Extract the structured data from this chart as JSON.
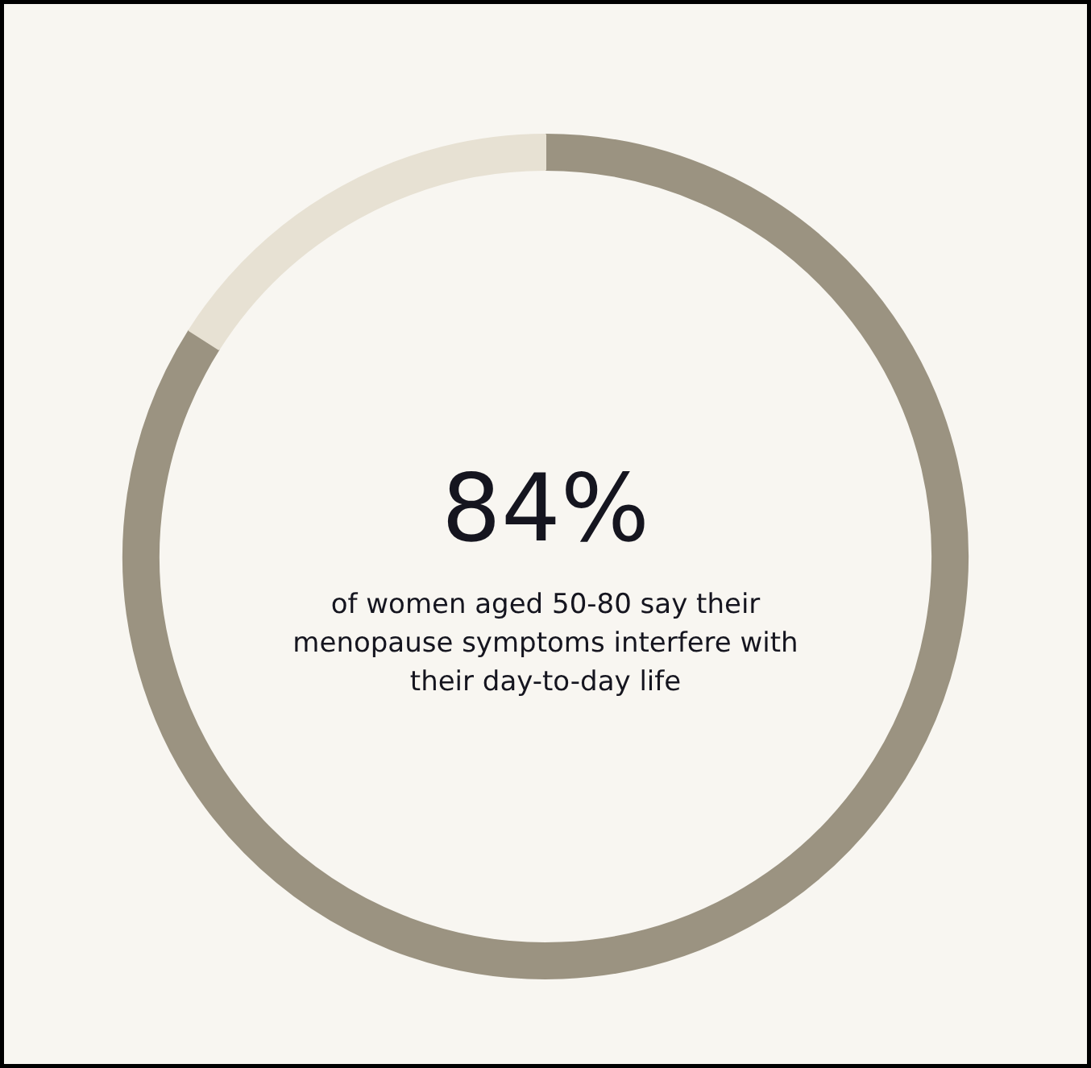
{
  "chart_data": {
    "type": "donut",
    "title": "84%",
    "subtitle": "of women aged 50-80 say their menopause symptoms interfere with their day-to-day life",
    "categories": [
      null,
      null
    ],
    "values": [
      84,
      16
    ],
    "colors": [
      "#9b9381",
      "#e7e1d3"
    ],
    "legend": false
  }
}
